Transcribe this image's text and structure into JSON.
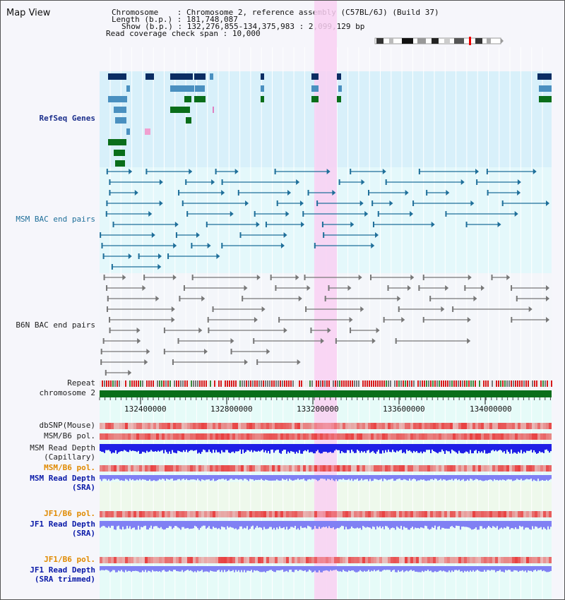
{
  "title": "Map View",
  "info": {
    "chromosome_key": "Chromosome",
    "chromosome_val": "Chromosome 2, reference assembly (C57BL/6J) (Build 37)",
    "length_key": "Length (b.p.)",
    "length_val": "181,748,087",
    "show_key": "Show (b.p.)",
    "show_val": "132,276,855-134,375,983 : 2,099,129 bp",
    "coverage_key": "Read coverage check span",
    "coverage_val": "10,000"
  },
  "tracks": {
    "refseq": "RefSeq Genes",
    "msm_bac": "MSM BAC end pairs",
    "b6n_bac": "B6N BAC end pairs",
    "repeat": "Repeat",
    "chromosome": "chromosome 2",
    "dbsnp": "dbSNP(Mouse)",
    "msm_b6_pol_1": "MSM/B6 pol.",
    "msm_depth_cap_1": "MSM Read Depth",
    "msm_depth_cap_2": "(Capillary)",
    "msm_b6_pol_2": "MSM/B6 pol.",
    "msm_depth_sra_1": "MSM Read Depth",
    "msm_depth_sra_2": "(SRA)",
    "jf1_b6_pol_1": "JF1/B6 pol.",
    "jf1_depth_sra_1": "JF1 Read Depth",
    "jf1_depth_sra_2": "(SRA)",
    "jf1_b6_pol_2": "JF1/B6 pol.",
    "jf1_depth_trim_1": "JF1 Read Depth",
    "jf1_depth_trim_2": "(SRA trimmed)"
  },
  "ruler": {
    "ticks": [
      "132400000",
      "132800000",
      "133200000",
      "133600000",
      "134000000"
    ]
  },
  "colors": {
    "refseq_band": "#d8f0fa",
    "gene_navy": "#0b2d63",
    "gene_steel": "#4a90c0",
    "gene_green": "#0a6e1a",
    "msm_bac_line": "#1f6f9a",
    "b6n_bac_line": "#777777",
    "highlight": "#f9d0f2",
    "read_depth_blue": "#1f1fe6",
    "read_depth_light": "#8080f4",
    "pol_red": "#e84040"
  }
}
